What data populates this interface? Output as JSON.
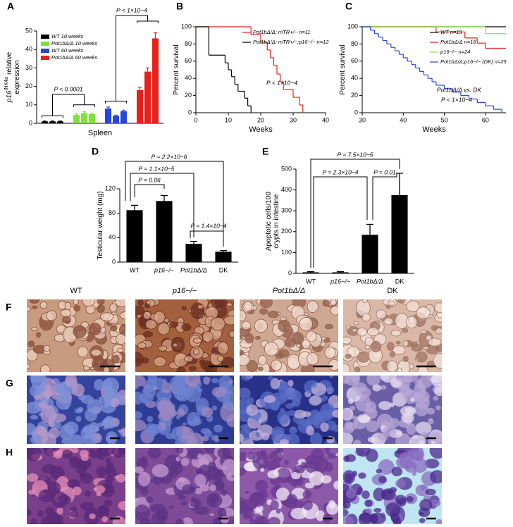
{
  "chart_data": [
    {
      "panel": "A",
      "type": "bar",
      "ylabel_gene": "p16",
      "ylabel_sup": "INK4a",
      "ylabel": [
        "relative",
        "expression"
      ],
      "xlabel": "Spleen",
      "ylim": [
        0,
        50
      ],
      "yticks": [
        0,
        10,
        20,
        30,
        40,
        50
      ],
      "legend": "upper-left",
      "series": [
        {
          "name": "WT 10 weeks",
          "color": "#000000",
          "values": [
            1,
            1,
            1
          ],
          "errors": [
            0.2,
            0.2,
            0.2
          ]
        },
        {
          "name": "Pot1bΔ/Δ 10 weeks",
          "color": "#7de23b",
          "values": [
            4.5,
            5.5,
            5
          ],
          "errors": [
            0.6,
            0.7,
            0.5
          ]
        },
        {
          "name": "WT 60 weeks",
          "color": "#2845e0",
          "values": [
            8,
            4,
            6.5
          ],
          "errors": [
            0.8,
            0.4,
            0.6
          ]
        },
        {
          "name": "Pot1bΔ/Δ 60 weeks",
          "color": "#e8201a",
          "values": [
            18,
            28,
            46
          ],
          "errors": [
            1.5,
            2,
            3
          ]
        }
      ],
      "annotations": [
        "P < 0.0001",
        "P < 1×10−4"
      ]
    },
    {
      "panel": "B",
      "type": "line",
      "step": true,
      "ylabel": [
        "Percent survival"
      ],
      "xlabel": "Weeks",
      "xlim": [
        0,
        40
      ],
      "xticks": [
        0,
        10,
        20,
        30,
        40
      ],
      "ylim": [
        0,
        100
      ],
      "yticks": [
        0,
        20,
        40,
        60,
        80,
        100
      ],
      "legend": "upper-right",
      "series": [
        {
          "name": "Pot1bΔ/Δ; mTR+/− n=11",
          "color": "#e8201a",
          "x": [
            0,
            17,
            20,
            22,
            23,
            24,
            25,
            26,
            27,
            30,
            32,
            33
          ],
          "values": [
            100,
            91,
            82,
            73,
            64,
            55,
            45,
            36,
            27,
            18,
            9,
            0
          ]
        },
        {
          "name": "Pot1bΔ/Δ; mTR+/−;p16−/− n=12",
          "color": "#000000",
          "x": [
            0,
            4,
            9,
            10,
            11,
            12,
            13,
            15,
            16,
            17
          ],
          "values": [
            100,
            67,
            58,
            50,
            42,
            33,
            25,
            17,
            8,
            0
          ]
        }
      ],
      "annotations": [
        "P < 1×10−4"
      ]
    },
    {
      "panel": "C",
      "type": "line",
      "step": true,
      "ylabel": [
        "Percent survival"
      ],
      "xlabel": "Weeks",
      "xlim": [
        30,
        65
      ],
      "xticks": [
        30,
        40,
        50,
        60
      ],
      "ylim": [
        0,
        100
      ],
      "yticks": [
        0,
        20,
        40,
        60,
        80,
        100
      ],
      "legend": "upper-right",
      "series": [
        {
          "name": "WT n=19",
          "color": "#000000",
          "x": [
            30,
            65
          ],
          "values": [
            100,
            100
          ]
        },
        {
          "name": "Pot1bΔ/Δ n=16",
          "color": "#e8201a",
          "x": [
            30,
            48,
            55,
            58,
            60,
            65
          ],
          "values": [
            100,
            94,
            87,
            81,
            75,
            75
          ]
        },
        {
          "name": "p16−/− n=24",
          "color": "#7de23b",
          "x": [
            30,
            60,
            65
          ],
          "values": [
            100,
            92,
            92
          ]
        },
        {
          "name": "Pot1bΔ/Δ;p16−/− (DK) n=25",
          "color": "#2845e0",
          "x": [
            30,
            32,
            33,
            34,
            35,
            36,
            37,
            38,
            39,
            40,
            41,
            42,
            43,
            44,
            45,
            46,
            47,
            48,
            50,
            52,
            54,
            56,
            58,
            60,
            62,
            64
          ],
          "values": [
            100,
            96,
            92,
            88,
            84,
            80,
            76,
            72,
            68,
            64,
            60,
            56,
            52,
            48,
            44,
            40,
            36,
            32,
            28,
            24,
            20,
            16,
            12,
            8,
            4,
            0
          ]
        }
      ],
      "annotations": [
        "Pot1bΔ/Δ vs. DK",
        "P < 1×10−4"
      ]
    },
    {
      "panel": "D",
      "type": "bar",
      "ylabel": [
        "Testicular weight (mg)"
      ],
      "categories": [
        "WT",
        "p16−/−",
        "Pot1bΔ/Δ",
        "DK"
      ],
      "values": [
        85,
        100,
        30,
        17
      ],
      "errors": [
        8,
        9,
        4,
        2
      ],
      "color": "#000000",
      "ylim": [
        0,
        120
      ],
      "yticks": [
        0,
        40,
        80,
        120
      ],
      "annotations": [
        "P = 0.06",
        "P = 1.1×10−5",
        "P = 2.2×10−6",
        "P = 1.4×10−4"
      ]
    },
    {
      "panel": "E",
      "type": "bar",
      "ylabel": [
        "Apoptotic cells/100",
        "crypts in intestine"
      ],
      "categories": [
        "WT",
        "p16−/−",
        "Pot1bΔ/Δ",
        "DK"
      ],
      "values": [
        5,
        5,
        185,
        375
      ],
      "errors": [
        3,
        3,
        50,
        105
      ],
      "color": "#000000",
      "ylim": [
        0,
        500
      ],
      "yticks": [
        0,
        100,
        200,
        300,
        400,
        500
      ],
      "annotations": [
        "P = 7.5×10−5",
        "P = 2.3×10−4",
        "P = 0.01"
      ]
    }
  ],
  "image_panels": {
    "columns": [
      "WT",
      "p16−/−",
      "Pot1bΔ/Δ",
      "DK"
    ],
    "rows": [
      "F",
      "G",
      "H"
    ]
  }
}
